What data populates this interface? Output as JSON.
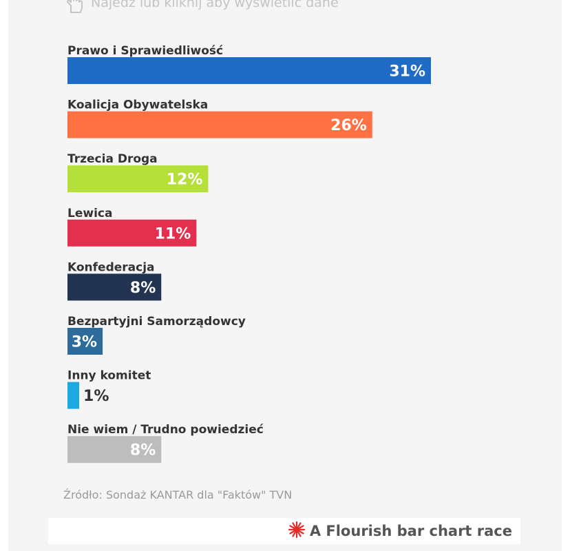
{
  "hint": {
    "text": "Najedź lub kliknij aby wyświetlić dane",
    "icon": "hand-pointer-icon"
  },
  "chart_data": {
    "type": "bar",
    "orientation": "horizontal",
    "categories": [
      "Prawo i Sprawiedliwość",
      "Koalicja Obywatelska",
      "Trzecia Droga",
      "Lewica",
      "Konfederacja",
      "Bezpartyjni Samorządowcy",
      "Inny komitet",
      "Nie wiem / Trudno powiedzieć"
    ],
    "values": [
      31,
      26,
      12,
      11,
      8,
      3,
      1,
      8
    ],
    "value_labels": [
      "31%",
      "26%",
      "12%",
      "11%",
      "8%",
      "3%",
      "1%",
      "8%"
    ],
    "colors": [
      "#1f6bc6",
      "#ff7043",
      "#b5e03a",
      "#e3304f",
      "#233352",
      "#2c6b9a",
      "#1ba9e1",
      "#bdbdbd"
    ],
    "unit": "%",
    "xlim": [
      0,
      31
    ]
  },
  "source": {
    "text": "Źródło: Sondaż KANTAR dla \"Faktów\" TVN"
  },
  "footer": {
    "credit": "A Flourish bar chart race",
    "icon": "flourish-logo-icon",
    "icon_color": "#e32b2b"
  }
}
